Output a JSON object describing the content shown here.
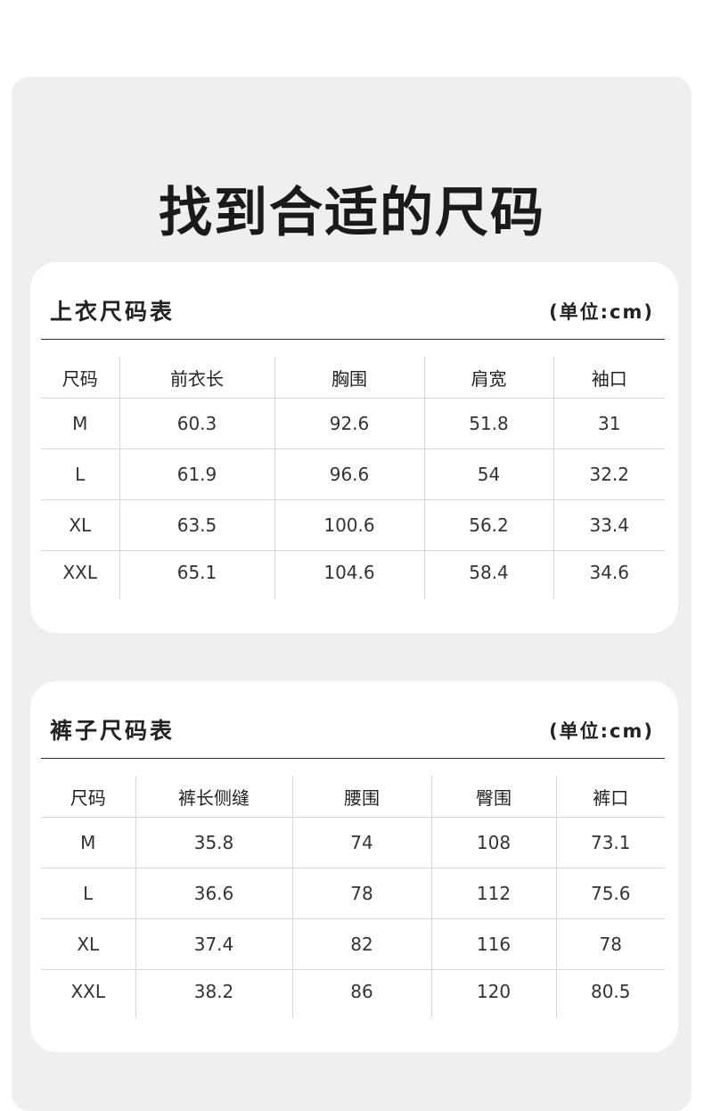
{
  "page_title": "找到合适的尺码",
  "tables": [
    {
      "title": "上衣尺码表",
      "unit": "(单位:cm)",
      "headers": [
        "尺码",
        "前衣长",
        "胸围",
        "肩宽",
        "袖口"
      ],
      "rows": [
        [
          "M",
          "60.3",
          "92.6",
          "51.8",
          "31"
        ],
        [
          "L",
          "61.9",
          "96.6",
          "54",
          "32.2"
        ],
        [
          "XL",
          "63.5",
          "100.6",
          "56.2",
          "33.4"
        ],
        [
          "XXL",
          "65.1",
          "104.6",
          "58.4",
          "34.6"
        ]
      ]
    },
    {
      "title": "裤子尺码表",
      "unit": "(单位:cm)",
      "headers": [
        "尺码",
        "裤长侧缝",
        "腰围",
        "臀围",
        "裤口"
      ],
      "rows": [
        [
          "M",
          "35.8",
          "74",
          "108",
          "73.1"
        ],
        [
          "L",
          "36.6",
          "78",
          "112",
          "75.6"
        ],
        [
          "XL",
          "37.4",
          "82",
          "116",
          "78"
        ],
        [
          "XXL",
          "38.2",
          "86",
          "120",
          "80.5"
        ]
      ]
    }
  ]
}
